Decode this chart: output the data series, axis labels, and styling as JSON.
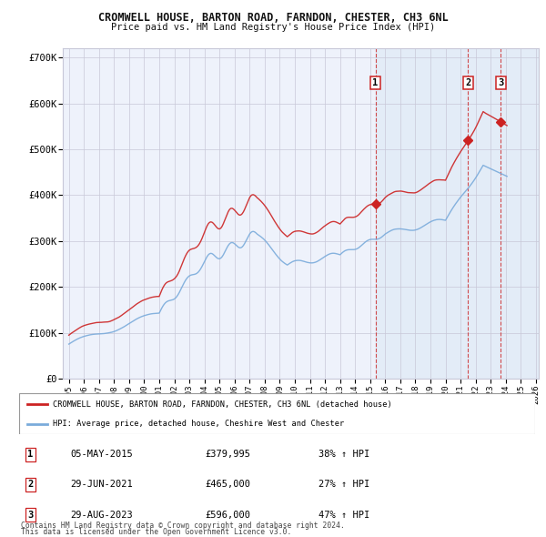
{
  "title": "CROMWELL HOUSE, BARTON ROAD, FARNDON, CHESTER, CH3 6NL",
  "subtitle": "Price paid vs. HM Land Registry's House Price Index (HPI)",
  "legend_line1": "CROMWELL HOUSE, BARTON ROAD, FARNDON, CHESTER, CH3 6NL (detached house)",
  "legend_line2": "HPI: Average price, detached house, Cheshire West and Chester",
  "footer1": "Contains HM Land Registry data © Crown copyright and database right 2024.",
  "footer2": "This data is licensed under the Open Government Licence v3.0.",
  "transactions": [
    {
      "num": 1,
      "date": "05-MAY-2015",
      "price": 379995,
      "hpi_pct": "38%",
      "direction": "↑",
      "x_year": 2015.35
    },
    {
      "num": 2,
      "date": "29-JUN-2021",
      "price": 465000,
      "hpi_pct": "27%",
      "direction": "↑",
      "x_year": 2021.5
    },
    {
      "num": 3,
      "date": "29-AUG-2023",
      "price": 596000,
      "hpi_pct": "47%",
      "direction": "↑",
      "x_year": 2023.67
    }
  ],
  "hpi_color": "#7aabdb",
  "price_color": "#cc2222",
  "bg_color": "#eef2fb",
  "grid_color": "#c8c8d8",
  "ylim": [
    0,
    720000
  ],
  "xlim_start": 1994.6,
  "xlim_end": 2026.2,
  "shade_start": 2015.35,
  "shade_end": 2026.2,
  "xticks": [
    1995,
    1996,
    1997,
    1998,
    1999,
    2000,
    2001,
    2002,
    2003,
    2004,
    2005,
    2006,
    2007,
    2008,
    2009,
    2010,
    2011,
    2012,
    2013,
    2014,
    2015,
    2016,
    2017,
    2018,
    2019,
    2020,
    2021,
    2022,
    2023,
    2024,
    2025,
    2026
  ],
  "yticks": [
    0,
    100000,
    200000,
    300000,
    400000,
    500000,
    600000,
    700000
  ],
  "ytick_labels": [
    "£0",
    "£100K",
    "£200K",
    "£300K",
    "£400K",
    "£500K",
    "£600K",
    "£700K"
  ]
}
